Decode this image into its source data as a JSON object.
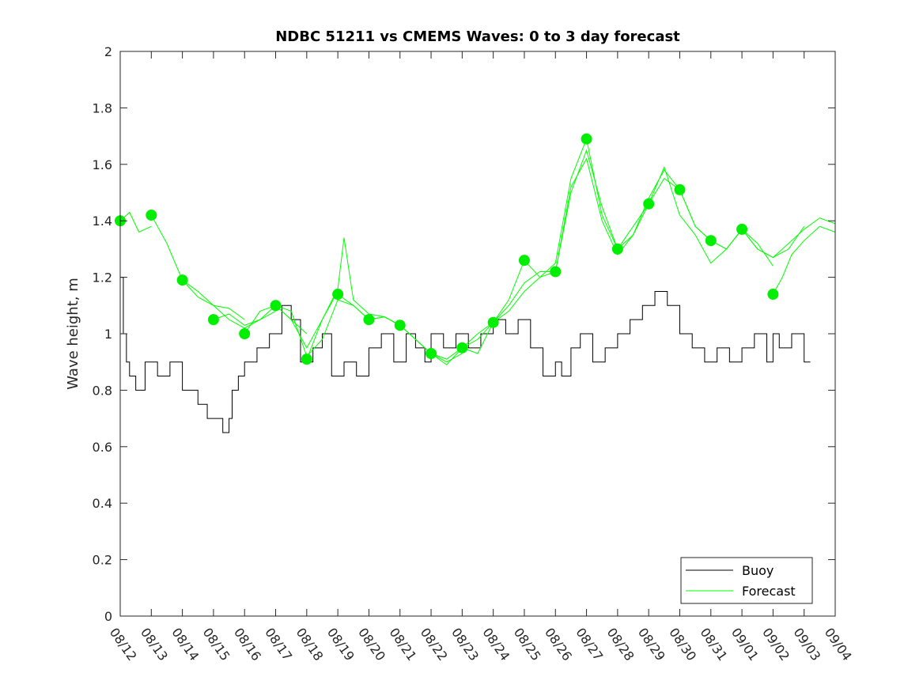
{
  "chart_data": {
    "type": "line",
    "title": "NDBC 51211 vs CMEMS Waves: 0 to 3 day forecast",
    "xlabel": "",
    "ylabel": "Wave height, m",
    "ylim": [
      0,
      2
    ],
    "xlim": [
      0,
      23
    ],
    "yticks": [
      0,
      0.2,
      0.4,
      0.6,
      0.8,
      1,
      1.2,
      1.4,
      1.6,
      1.8,
      2
    ],
    "ytick_labels": [
      "0",
      "0.2",
      "0.4",
      "0.6",
      "0.8",
      "1",
      "1.2",
      "1.4",
      "1.6",
      "1.8",
      "2"
    ],
    "xtick_labels": [
      "08/12",
      "08/13",
      "08/14",
      "08/15",
      "08/16",
      "08/17",
      "08/18",
      "08/19",
      "08/20",
      "08/21",
      "08/22",
      "08/23",
      "08/24",
      "08/25",
      "08/26",
      "08/27",
      "08/28",
      "08/29",
      "08/30",
      "08/31",
      "09/01",
      "09/02",
      "09/03",
      "09/04"
    ],
    "grid": false,
    "legend": {
      "location": "bottom-right",
      "entries": [
        "Buoy",
        "Forecast"
      ]
    },
    "colors": {
      "buoy": "#000000",
      "forecast": "#00ff00",
      "markers": "#00ee00"
    },
    "series": [
      {
        "name": "Buoy",
        "style": "step",
        "x": [
          0,
          0.1,
          0.2,
          0.3,
          0.5,
          0.8,
          1.2,
          1.6,
          2,
          2.5,
          2.8,
          3.3,
          3.5,
          3.6,
          3.8,
          4,
          4.4,
          4.8,
          5.2,
          5.5,
          5.8,
          6.2,
          6.5,
          6.8,
          7.2,
          7.6,
          8,
          8.4,
          8.8,
          9.2,
          9.5,
          9.8,
          10,
          10.4,
          10.8,
          11.2,
          11.6,
          12,
          12.4,
          12.8,
          13.2,
          13.6,
          14,
          14.2,
          14.5,
          14.8,
          15.2,
          15.6,
          16,
          16.4,
          16.8,
          17.2,
          17.6,
          18,
          18.4,
          18.8,
          19.2,
          19.6,
          20,
          20.4,
          20.8,
          21,
          21.2,
          21.6,
          22,
          22.2
        ],
        "values": [
          1.2,
          1.0,
          0.9,
          0.85,
          0.8,
          0.9,
          0.85,
          0.9,
          0.8,
          0.75,
          0.7,
          0.65,
          0.7,
          0.8,
          0.85,
          0.9,
          0.95,
          1.0,
          1.1,
          1.05,
          0.9,
          0.95,
          1.0,
          0.85,
          0.9,
          0.85,
          0.95,
          1.0,
          0.9,
          1.0,
          0.95,
          0.9,
          1.0,
          0.95,
          1.0,
          0.95,
          1.0,
          1.05,
          1.0,
          1.05,
          0.95,
          0.85,
          0.9,
          0.85,
          0.95,
          1.0,
          0.9,
          0.95,
          1.0,
          1.05,
          1.1,
          1.15,
          1.1,
          1.0,
          0.95,
          0.9,
          0.95,
          0.9,
          0.95,
          1.0,
          0.9,
          1.0,
          0.95,
          1.0,
          0.9,
          0.9
        ]
      },
      {
        "name": "Forecast",
        "style": "line",
        "runs": [
          {
            "x": [
              0,
              0.3,
              0.6,
              1
            ],
            "values": [
              1.4,
              1.43,
              1.36,
              1.38
            ]
          },
          {
            "x": [
              1,
              1.5,
              2,
              2.5,
              3,
              3.5,
              4
            ],
            "values": [
              1.42,
              1.32,
              1.19,
              1.13,
              1.1,
              1.09,
              1.05
            ]
          },
          {
            "x": [
              2,
              2.5,
              3,
              3.5,
              4,
              4.5,
              5
            ],
            "values": [
              1.19,
              1.15,
              1.1,
              1.05,
              1.02,
              1.05,
              1.08
            ]
          },
          {
            "x": [
              3,
              3.5,
              4,
              4.5,
              5,
              5.5,
              6
            ],
            "values": [
              1.05,
              1.07,
              1.03,
              1.05,
              1.1,
              1.05,
              1.0
            ]
          },
          {
            "x": [
              4,
              4.5,
              5,
              5.5,
              6,
              6.5,
              7
            ],
            "values": [
              1.0,
              1.08,
              1.1,
              1.05,
              0.95,
              1.05,
              1.15
            ]
          },
          {
            "x": [
              5,
              5.5,
              6,
              6.5,
              7,
              7.5,
              8
            ],
            "values": [
              1.1,
              1.08,
              0.92,
              0.98,
              1.12,
              1.1,
              1.05
            ]
          },
          {
            "x": [
              6,
              6.5,
              7,
              7.2,
              7.5,
              8,
              8.5,
              9
            ],
            "values": [
              0.91,
              1.05,
              1.16,
              1.34,
              1.12,
              1.07,
              1.06,
              1.03
            ]
          },
          {
            "x": [
              7,
              7.5,
              8,
              8.5,
              9,
              9.5,
              10
            ],
            "values": [
              1.14,
              1.1,
              1.05,
              1.06,
              1.03,
              0.98,
              0.93
            ]
          },
          {
            "x": [
              8,
              8.5,
              9,
              9.5,
              10,
              10.5,
              11
            ],
            "values": [
              1.05,
              1.06,
              1.03,
              0.98,
              0.93,
              0.9,
              0.93
            ]
          },
          {
            "x": [
              9,
              9.5,
              10,
              10.5,
              11,
              11.5,
              12
            ],
            "values": [
              1.03,
              0.98,
              0.93,
              0.91,
              0.95,
              1.0,
              1.04
            ]
          },
          {
            "x": [
              10,
              10.5,
              11,
              11.5,
              12,
              12.5,
              13
            ],
            "values": [
              0.93,
              0.89,
              0.95,
              0.98,
              1.04,
              1.12,
              1.26
            ]
          },
          {
            "x": [
              11,
              11.5,
              12,
              12.5,
              13,
              13.5,
              14
            ],
            "values": [
              0.95,
              0.93,
              1.04,
              1.1,
              1.18,
              1.22,
              1.22
            ]
          },
          {
            "x": [
              12,
              12.5,
              13,
              13.5,
              14,
              14.5,
              15
            ],
            "values": [
              1.04,
              1.08,
              1.15,
              1.2,
              1.25,
              1.55,
              1.69
            ]
          },
          {
            "x": [
              13,
              13.5,
              14,
              14.5,
              15,
              15.5,
              16
            ],
            "values": [
              1.26,
              1.2,
              1.22,
              1.5,
              1.65,
              1.45,
              1.3
            ]
          },
          {
            "x": [
              14,
              14.5,
              15,
              15.5,
              16,
              16.5,
              17
            ],
            "values": [
              1.22,
              1.52,
              1.62,
              1.4,
              1.28,
              1.35,
              1.46
            ]
          },
          {
            "x": [
              15,
              15.5,
              16,
              16.5,
              17,
              17.5,
              18
            ],
            "values": [
              1.69,
              1.42,
              1.3,
              1.38,
              1.46,
              1.55,
              1.51
            ]
          },
          {
            "x": [
              16,
              16.5,
              17,
              17.5,
              18,
              18.5,
              19
            ],
            "values": [
              1.3,
              1.35,
              1.48,
              1.58,
              1.51,
              1.38,
              1.33
            ]
          },
          {
            "x": [
              17,
              17.5,
              18,
              18.5,
              19,
              19.5,
              20
            ],
            "values": [
              1.46,
              1.59,
              1.42,
              1.35,
              1.25,
              1.3,
              1.37
            ]
          },
          {
            "x": [
              18,
              18.5,
              19,
              19.5,
              20,
              20.5,
              21
            ],
            "values": [
              1.51,
              1.38,
              1.33,
              1.3,
              1.37,
              1.32,
              1.24
            ]
          },
          {
            "x": [
              19,
              19.5,
              20,
              20.5,
              21,
              21.5,
              22
            ],
            "values": [
              1.33,
              1.3,
              1.37,
              1.3,
              1.27,
              1.3,
              1.38
            ]
          },
          {
            "x": [
              20,
              20.5,
              21,
              21.5,
              22,
              22.5,
              23
            ],
            "values": [
              1.37,
              1.3,
              1.27,
              1.32,
              1.37,
              1.41,
              1.39
            ]
          },
          {
            "x": [
              21,
              21.3,
              21.6,
              22,
              22.5,
              23
            ],
            "values": [
              1.14,
              1.2,
              1.28,
              1.33,
              1.38,
              1.36
            ]
          }
        ],
        "markers": {
          "x": [
            0,
            1,
            2,
            3,
            4,
            5,
            6,
            7,
            8,
            9,
            10,
            11,
            12,
            13,
            14,
            15,
            16,
            17,
            18,
            19,
            20,
            21
          ],
          "values": [
            1.4,
            1.42,
            1.19,
            1.05,
            1.0,
            1.1,
            0.91,
            1.14,
            1.05,
            1.03,
            0.93,
            0.95,
            1.04,
            1.26,
            1.22,
            1.69,
            1.3,
            1.46,
            1.51,
            1.33,
            1.37,
            1.14
          ]
        }
      }
    ]
  }
}
